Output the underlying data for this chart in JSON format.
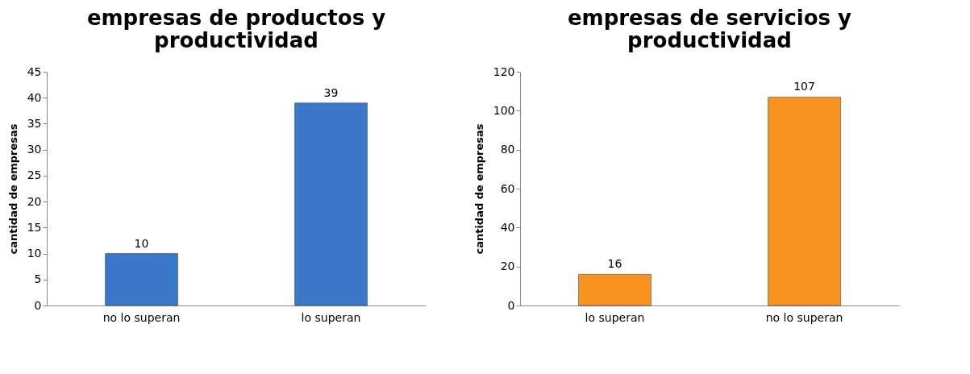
{
  "chart_data": [
    {
      "type": "bar",
      "title": "empresas de productos y productividad",
      "ylabel": "cantidad de empresas",
      "categories": [
        "no lo superan",
        "lo superan"
      ],
      "values": [
        10,
        39
      ],
      "color": "#3c78c8",
      "ylim": [
        0,
        45
      ],
      "yticks": [
        0,
        5,
        10,
        15,
        20,
        25,
        30,
        35,
        40,
        45
      ],
      "data_labels": true
    },
    {
      "type": "bar",
      "title": "empresas de servicios y productividad",
      "ylabel": "cantidad de empresas",
      "categories": [
        "lo superan",
        "no lo superan"
      ],
      "values": [
        16,
        107
      ],
      "color": "#f7931e",
      "ylim": [
        0,
        120
      ],
      "yticks": [
        0,
        20,
        40,
        60,
        80,
        100,
        120
      ],
      "data_labels": true
    }
  ]
}
